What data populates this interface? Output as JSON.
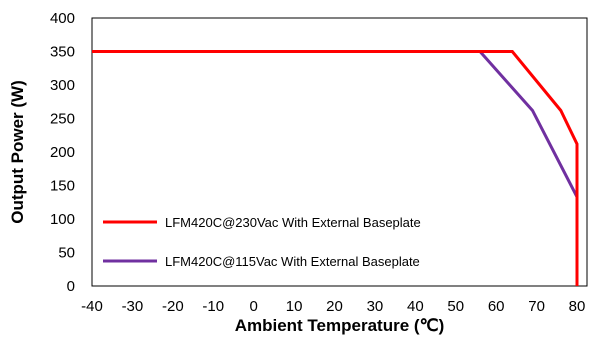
{
  "chart_data": {
    "type": "line",
    "title": "",
    "xlabel": "Ambient Temperature (℃)",
    "ylabel": "Output Power (W)",
    "xlim": [
      -40,
      80
    ],
    "ylim": [
      0,
      400
    ],
    "xticks": [
      -40,
      -30,
      -20,
      -10,
      0,
      10,
      20,
      30,
      40,
      50,
      60,
      70,
      80
    ],
    "yticks": [
      0,
      50,
      100,
      150,
      200,
      250,
      300,
      350,
      400
    ],
    "grid": false,
    "legend_position": "bottom-left",
    "series": [
      {
        "name": "LFM420C@230Vac With External Baseplate",
        "color": "#ff0000",
        "x": [
          -40,
          64,
          76,
          80,
          80
        ],
        "y": [
          350,
          350,
          262,
          212,
          0
        ]
      },
      {
        "name": "LFM420C@115Vac With External Baseplate",
        "color": "#7030a0",
        "x": [
          -40,
          56,
          69,
          80,
          80
        ],
        "y": [
          350,
          350,
          262,
          133,
          0
        ]
      }
    ]
  }
}
